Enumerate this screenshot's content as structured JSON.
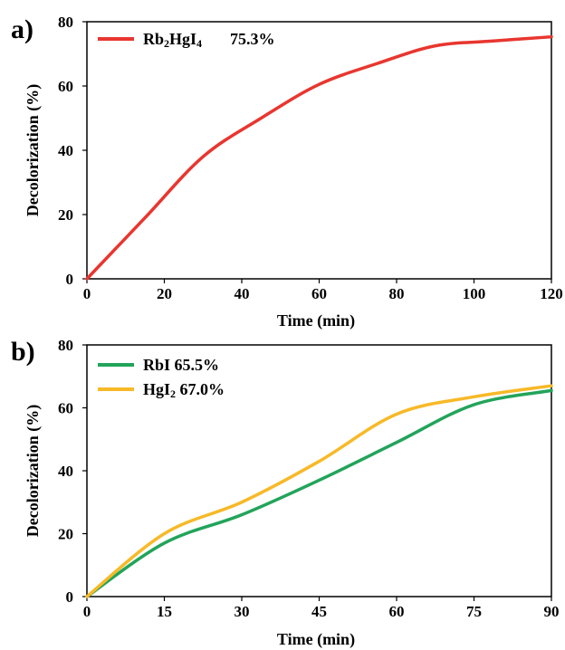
{
  "chart_data": [
    {
      "type": "line",
      "panel_label": "a)",
      "xlabel": "Time (min)",
      "ylabel": "Decolorization (%)",
      "xlim": [
        0,
        120
      ],
      "ylim": [
        0,
        80
      ],
      "xticks": [
        0,
        20,
        40,
        60,
        80,
        100,
        120
      ],
      "yticks": [
        0,
        20,
        40,
        60,
        80
      ],
      "grid": false,
      "legend_position": "top-left",
      "series": [
        {
          "name": "Rb2HgI4",
          "legend_value": "75.3%",
          "color": "#e8362f",
          "x": [
            0,
            15,
            30,
            45,
            60,
            75,
            90,
            105,
            120
          ],
          "y": [
            0,
            19,
            38,
            50,
            60.5,
            67,
            72.5,
            74,
            75.3
          ]
        }
      ]
    },
    {
      "type": "line",
      "panel_label": "b)",
      "xlabel": "Time (min)",
      "ylabel": "Decolorization (%)",
      "xlim": [
        0,
        90
      ],
      "ylim": [
        0,
        80
      ],
      "xticks": [
        0,
        15,
        30,
        45,
        60,
        75,
        90
      ],
      "yticks": [
        0,
        20,
        40,
        60,
        80
      ],
      "grid": false,
      "legend_position": "top-left",
      "series": [
        {
          "name": "RbI",
          "legend_value": "65.5%",
          "color": "#22a45a",
          "x": [
            0,
            15,
            30,
            45,
            60,
            75,
            90
          ],
          "y": [
            0,
            17,
            26,
            37,
            49,
            61,
            65.5
          ]
        },
        {
          "name": "HgI2",
          "legend_value": "67.0%",
          "color": "#f7b928",
          "x": [
            0,
            15,
            30,
            45,
            60,
            75,
            90
          ],
          "y": [
            0,
            20,
            30,
            43,
            58,
            63.5,
            67
          ]
        }
      ]
    }
  ]
}
